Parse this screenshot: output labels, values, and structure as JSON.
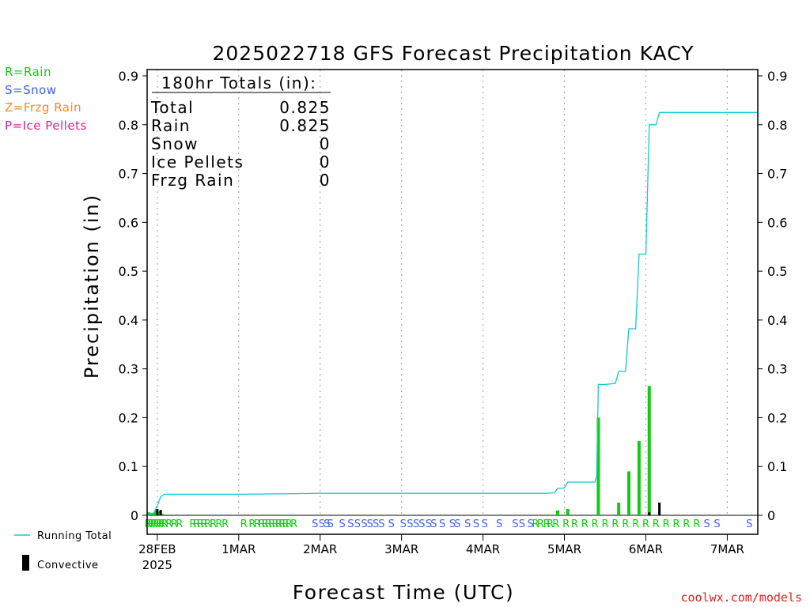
{
  "chart_data": {
    "type": "bar",
    "title": "2025022718 GFS Forecast Precipitation KACY",
    "ylabel": "Precipitation (in)",
    "xlabel": "Forecast Time (UTC)",
    "ylim": [
      0,
      0.9
    ],
    "yticks": [
      0,
      0.1,
      0.2,
      0.3,
      0.4,
      0.5,
      0.6,
      0.7,
      0.8,
      0.9
    ],
    "ytick_labels": [
      "0",
      "0.1",
      "0.2",
      "0.3",
      "0.4",
      "0.5",
      "0.6",
      "0.7",
      "0.8",
      "0.9"
    ],
    "x_range_hours": [
      -3,
      177
    ],
    "x_unit": "hours after 2025-02-28 00Z",
    "xticks": [
      {
        "hour": 0,
        "label": "28FEB",
        "sublabel": "2025"
      },
      {
        "hour": 24,
        "label": "1MAR"
      },
      {
        "hour": 48,
        "label": "2MAR"
      },
      {
        "hour": 72,
        "label": "3MAR"
      },
      {
        "hour": 96,
        "label": "4MAR"
      },
      {
        "hour": 120,
        "label": "5MAR"
      },
      {
        "hour": 144,
        "label": "6MAR"
      },
      {
        "hour": 168,
        "label": "7MAR"
      }
    ],
    "grid": "vertical dotted",
    "totals_box": {
      "header": "180hr Totals (in):",
      "rows": [
        {
          "label": "Total",
          "value": "0.825"
        },
        {
          "label": "Rain",
          "value": "0.825"
        },
        {
          "label": "Snow",
          "value": "0"
        },
        {
          "label": "Ice Pellets",
          "value": "0"
        },
        {
          "label": "Frzg Rain",
          "value": "0"
        }
      ]
    },
    "series": [
      {
        "name": "Running Total",
        "type": "line",
        "color": "#16c8d0",
        "points": [
          [
            -3,
            0
          ],
          [
            -2,
            0.003
          ],
          [
            -1,
            0.005
          ],
          [
            0,
            0.02
          ],
          [
            1,
            0.038
          ],
          [
            2,
            0.043
          ],
          [
            24,
            0.043
          ],
          [
            48,
            0.045
          ],
          [
            114,
            0.045
          ],
          [
            117,
            0.046
          ],
          [
            118,
            0.055
          ],
          [
            120,
            0.056
          ],
          [
            121,
            0.068
          ],
          [
            129,
            0.068
          ],
          [
            129.5,
            0.08
          ],
          [
            130,
            0.268
          ],
          [
            132,
            0.268
          ],
          [
            135,
            0.27
          ],
          [
            136,
            0.295
          ],
          [
            138,
            0.295
          ],
          [
            139,
            0.382
          ],
          [
            141,
            0.382
          ],
          [
            142,
            0.535
          ],
          [
            144,
            0.535
          ],
          [
            145,
            0.8
          ],
          [
            147,
            0.8
          ],
          [
            148,
            0.825
          ],
          [
            177,
            0.825
          ]
        ]
      },
      {
        "name": "precip-bars",
        "type": "bar",
        "color": "#10cc10",
        "bars": [
          [
            -2.5,
            0.006
          ],
          [
            -1.5,
            0.005
          ],
          [
            -0.5,
            0.01
          ],
          [
            0.5,
            0.008
          ],
          [
            1.5,
            0.003
          ],
          [
            118,
            0.01
          ],
          [
            121,
            0.013
          ],
          [
            130,
            0.2
          ],
          [
            136,
            0.026
          ],
          [
            139,
            0.09
          ],
          [
            142,
            0.152
          ],
          [
            145,
            0.265
          ]
        ]
      },
      {
        "name": "Convective",
        "type": "bar",
        "color": "#000000",
        "bars": [
          [
            0,
            0.013
          ],
          [
            1,
            0.011
          ],
          [
            145,
            0.006
          ],
          [
            148,
            0.026
          ]
        ]
      }
    ],
    "ptype_row": [
      {
        "h": -2.7,
        "t": "R"
      },
      {
        "h": -1.9,
        "t": "R"
      },
      {
        "h": -1.1,
        "t": "R"
      },
      {
        "h": -0.3,
        "t": "R"
      },
      {
        "h": 0.5,
        "t": "R"
      },
      {
        "h": 1.3,
        "t": "R"
      },
      {
        "h": 2.1,
        "t": "R"
      },
      {
        "h": 3.5,
        "t": "R"
      },
      {
        "h": 5,
        "t": "R"
      },
      {
        "h": 6.5,
        "t": "R"
      },
      {
        "h": 10.5,
        "t": "R"
      },
      {
        "h": 11.6,
        "t": "R"
      },
      {
        "h": 12.7,
        "t": "R"
      },
      {
        "h": 13.8,
        "t": "R"
      },
      {
        "h": 14.9,
        "t": "R"
      },
      {
        "h": 16.5,
        "t": "R"
      },
      {
        "h": 18.2,
        "t": "R"
      },
      {
        "h": 20,
        "t": "R"
      },
      {
        "h": 25.5,
        "t": "R"
      },
      {
        "h": 28,
        "t": "R"
      },
      {
        "h": 29.5,
        "t": "R"
      },
      {
        "h": 30.8,
        "t": "R"
      },
      {
        "h": 31.8,
        "t": "R"
      },
      {
        "h": 32.8,
        "t": "R"
      },
      {
        "h": 33.8,
        "t": "R"
      },
      {
        "h": 34.8,
        "t": "R"
      },
      {
        "h": 35.8,
        "t": "R"
      },
      {
        "h": 36.8,
        "t": "R"
      },
      {
        "h": 37.8,
        "t": "R"
      },
      {
        "h": 38.8,
        "t": "R"
      },
      {
        "h": 40.3,
        "t": "R"
      },
      {
        "h": 46.5,
        "t": "S"
      },
      {
        "h": 48.5,
        "t": "S"
      },
      {
        "h": 50,
        "t": "S"
      },
      {
        "h": 51,
        "t": "S"
      },
      {
        "h": 54.5,
        "t": "S"
      },
      {
        "h": 57,
        "t": "S"
      },
      {
        "h": 59,
        "t": "S"
      },
      {
        "h": 61,
        "t": "S"
      },
      {
        "h": 62.7,
        "t": "S"
      },
      {
        "h": 64.4,
        "t": "S"
      },
      {
        "h": 66.1,
        "t": "S"
      },
      {
        "h": 69,
        "t": "S"
      },
      {
        "h": 72.5,
        "t": "S"
      },
      {
        "h": 74.5,
        "t": "S"
      },
      {
        "h": 76.3,
        "t": "S"
      },
      {
        "h": 78,
        "t": "S"
      },
      {
        "h": 80,
        "t": "S"
      },
      {
        "h": 81.5,
        "t": "S"
      },
      {
        "h": 84,
        "t": "S"
      },
      {
        "h": 87,
        "t": "S"
      },
      {
        "h": 88.5,
        "t": "S"
      },
      {
        "h": 91.5,
        "t": "S"
      },
      {
        "h": 94,
        "t": "S"
      },
      {
        "h": 96.5,
        "t": "S"
      },
      {
        "h": 100.8,
        "t": "S"
      },
      {
        "h": 105.5,
        "t": "S"
      },
      {
        "h": 107.5,
        "t": "S"
      },
      {
        "h": 110,
        "t": "S"
      },
      {
        "h": 111.5,
        "t": "R"
      },
      {
        "h": 113,
        "t": "R"
      },
      {
        "h": 114.8,
        "t": "R"
      },
      {
        "h": 115.8,
        "t": "R"
      },
      {
        "h": 117.5,
        "t": "R"
      },
      {
        "h": 120.5,
        "t": "R"
      },
      {
        "h": 123,
        "t": "R"
      },
      {
        "h": 126,
        "t": "R"
      },
      {
        "h": 129,
        "t": "R"
      },
      {
        "h": 132,
        "t": "R"
      },
      {
        "h": 135,
        "t": "R"
      },
      {
        "h": 138,
        "t": "R"
      },
      {
        "h": 141,
        "t": "R"
      },
      {
        "h": 144,
        "t": "R"
      },
      {
        "h": 147,
        "t": "R"
      },
      {
        "h": 150,
        "t": "R"
      },
      {
        "h": 153,
        "t": "R"
      },
      {
        "h": 156,
        "t": "R"
      },
      {
        "h": 159,
        "t": "R"
      },
      {
        "h": 162,
        "t": "S"
      },
      {
        "h": 165,
        "t": "S"
      },
      {
        "h": 174.5,
        "t": "S"
      }
    ],
    "ptype_colors": {
      "R": "#10cc10",
      "S": "#4060e0"
    }
  },
  "ptype_legend": [
    {
      "text": "R=Rain",
      "color": "#10cc10"
    },
    {
      "text": "S=Snow",
      "color": "#4060e0"
    },
    {
      "text": "Z=Frzg Rain",
      "color": "#f08a30"
    },
    {
      "text": "P=Ice Pellets",
      "color": "#e0208a"
    }
  ],
  "bottom_legend": {
    "running_total": "Running Total",
    "convective": "Convective"
  },
  "credit": "coolwx.com/models",
  "credit_color": "#e02020"
}
